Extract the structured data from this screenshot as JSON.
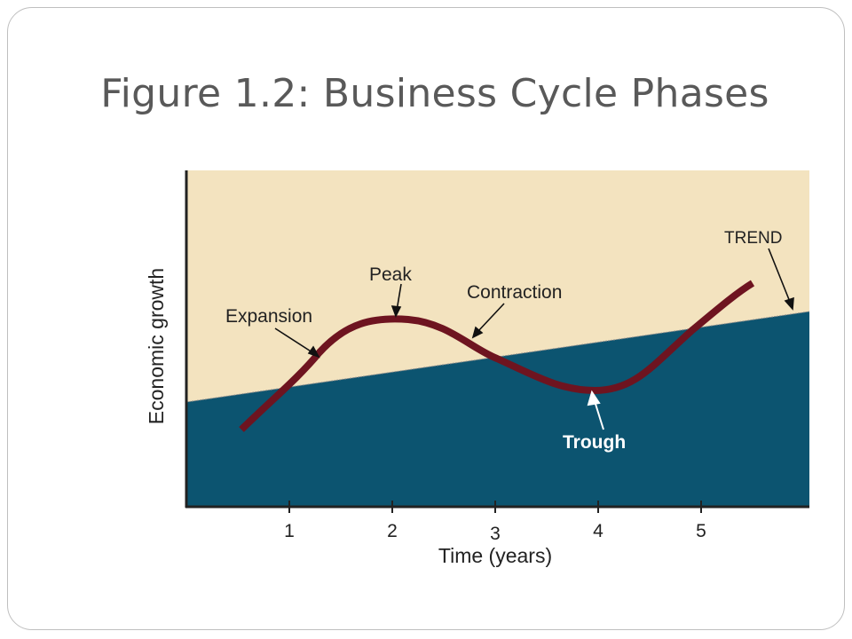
{
  "slide": {
    "title": "Figure 1.2: Business Cycle Phases"
  },
  "diagram": {
    "y_axis_label": "Economic growth",
    "x_axis_label": "Time (years)",
    "x_ticks": [
      "1",
      "2",
      "3",
      "4",
      "5"
    ],
    "labels": {
      "trend": "TREND",
      "peak": "Peak",
      "contraction": "Contraction",
      "expansion": "Expansion",
      "trough": "Trough"
    },
    "colors": {
      "above_trend": "#f3e3bf",
      "below_trend": "#0c5470",
      "cycle_line": "#6e1420",
      "axis": "#222222"
    }
  }
}
